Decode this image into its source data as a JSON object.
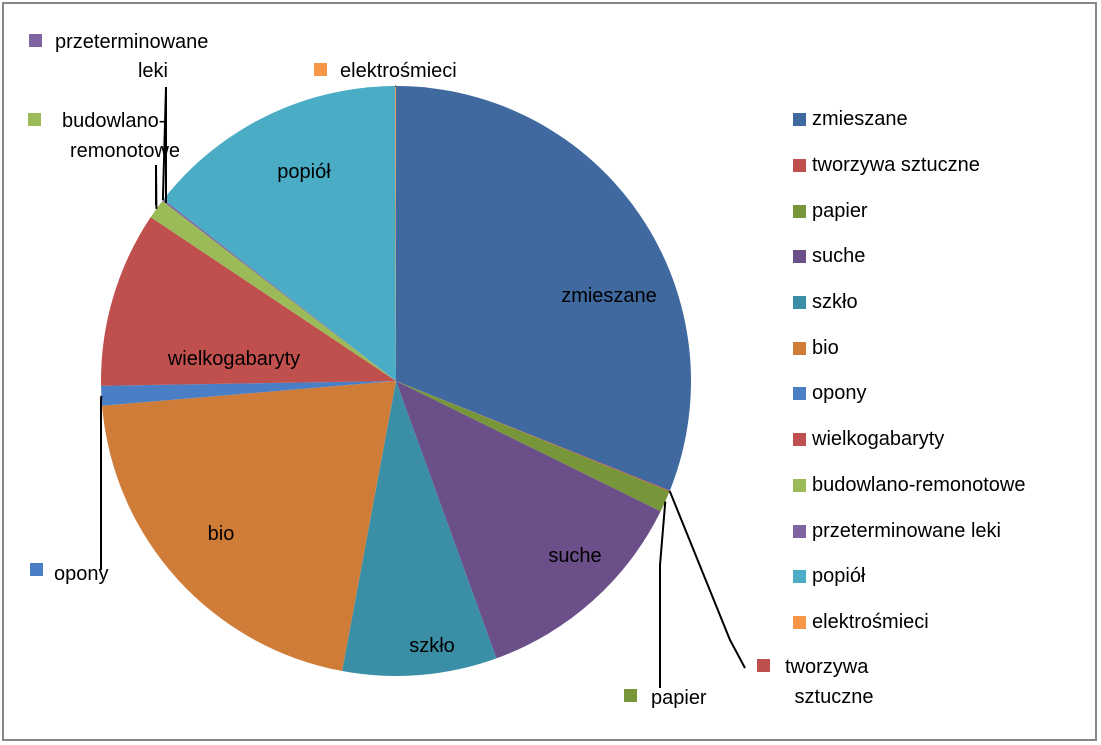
{
  "chart_data": {
    "type": "pie",
    "start_angle_deg": 0,
    "direction": "clockwise",
    "slices": [
      {
        "label": "zmieszane",
        "value": 31.6,
        "color": "#4069A0",
        "leader": false
      },
      {
        "label": "tworzywa sztuczne",
        "value": 0.05,
        "color": "#C0504D",
        "leader": true
      },
      {
        "label": "papier",
        "value": 1.2,
        "color": "#77963A",
        "leader": true
      },
      {
        "label": "suche",
        "value": 12.4,
        "color": "#6A4F88",
        "leader": false
      },
      {
        "label": "szkło",
        "value": 8.6,
        "color": "#3A8FA6",
        "leader": false
      },
      {
        "label": "bio",
        "value": 21.1,
        "color": "#D07C39",
        "leader": false
      },
      {
        "label": "opony",
        "value": 1.1,
        "color": "#4A7FC6",
        "leader": true
      },
      {
        "label": "wielkogabaryty",
        "value": 9.8,
        "color": "#C0504D",
        "leader": false
      },
      {
        "label": "budowlano-remonotowe",
        "value": 1.1,
        "color": "#9BBB59",
        "leader": true
      },
      {
        "label": "przeterminowane leki",
        "value": 0.1,
        "color": "#8064A2",
        "leader": true
      },
      {
        "label": "popiół",
        "value": 14.65,
        "color": "#4BACC6",
        "leader": false
      },
      {
        "label": "elektrośmieci",
        "value": 0.05,
        "color": "#F79646",
        "leader": true
      }
    ],
    "callouts": {
      "tworzywa": [
        "tworzywa",
        "sztuczne"
      ],
      "papier": [
        "papier"
      ],
      "opony": [
        "opony"
      ],
      "budowlano": [
        "budowlano-",
        "remonotowe"
      ],
      "leki": [
        "przeterminowane",
        "leki"
      ],
      "elektro": [
        "elektrośmieci"
      ]
    },
    "legend_position": "right",
    "legend": [
      "zmieszane",
      "tworzywa sztuczne",
      "papier",
      "suche",
      "szkło",
      "bio",
      "opony",
      "wielkogabaryty",
      "budowlano-remonotowe",
      "przeterminowane leki",
      "popiół",
      "elektrośmieci"
    ]
  }
}
